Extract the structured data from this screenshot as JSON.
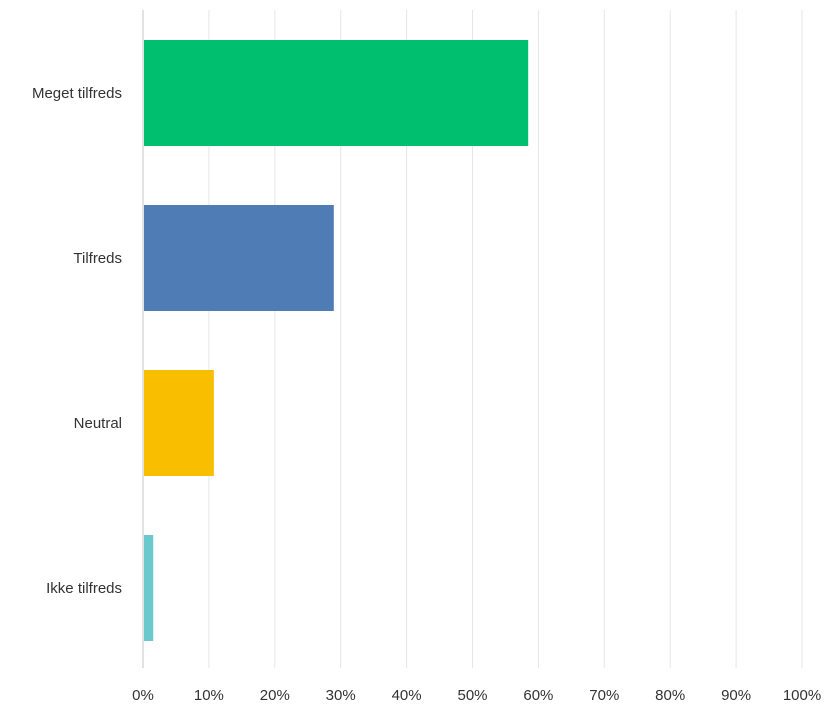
{
  "chart_data": {
    "type": "bar",
    "orientation": "horizontal",
    "categories": [
      "Meget tilfreds",
      "Tilfreds",
      "Neutral",
      "Ikke tilfreds"
    ],
    "values": [
      58.3,
      28.8,
      10.6,
      1.4
    ],
    "colors": [
      "#00bf6f",
      "#507cb6",
      "#f9be00",
      "#6bc8cd"
    ],
    "x_ticks": [
      "0%",
      "10%",
      "20%",
      "30%",
      "40%",
      "50%",
      "60%",
      "70%",
      "80%",
      "90%",
      "100%"
    ],
    "xlim": [
      0,
      100
    ],
    "grid": true,
    "title": "",
    "xlabel": "",
    "ylabel": ""
  }
}
